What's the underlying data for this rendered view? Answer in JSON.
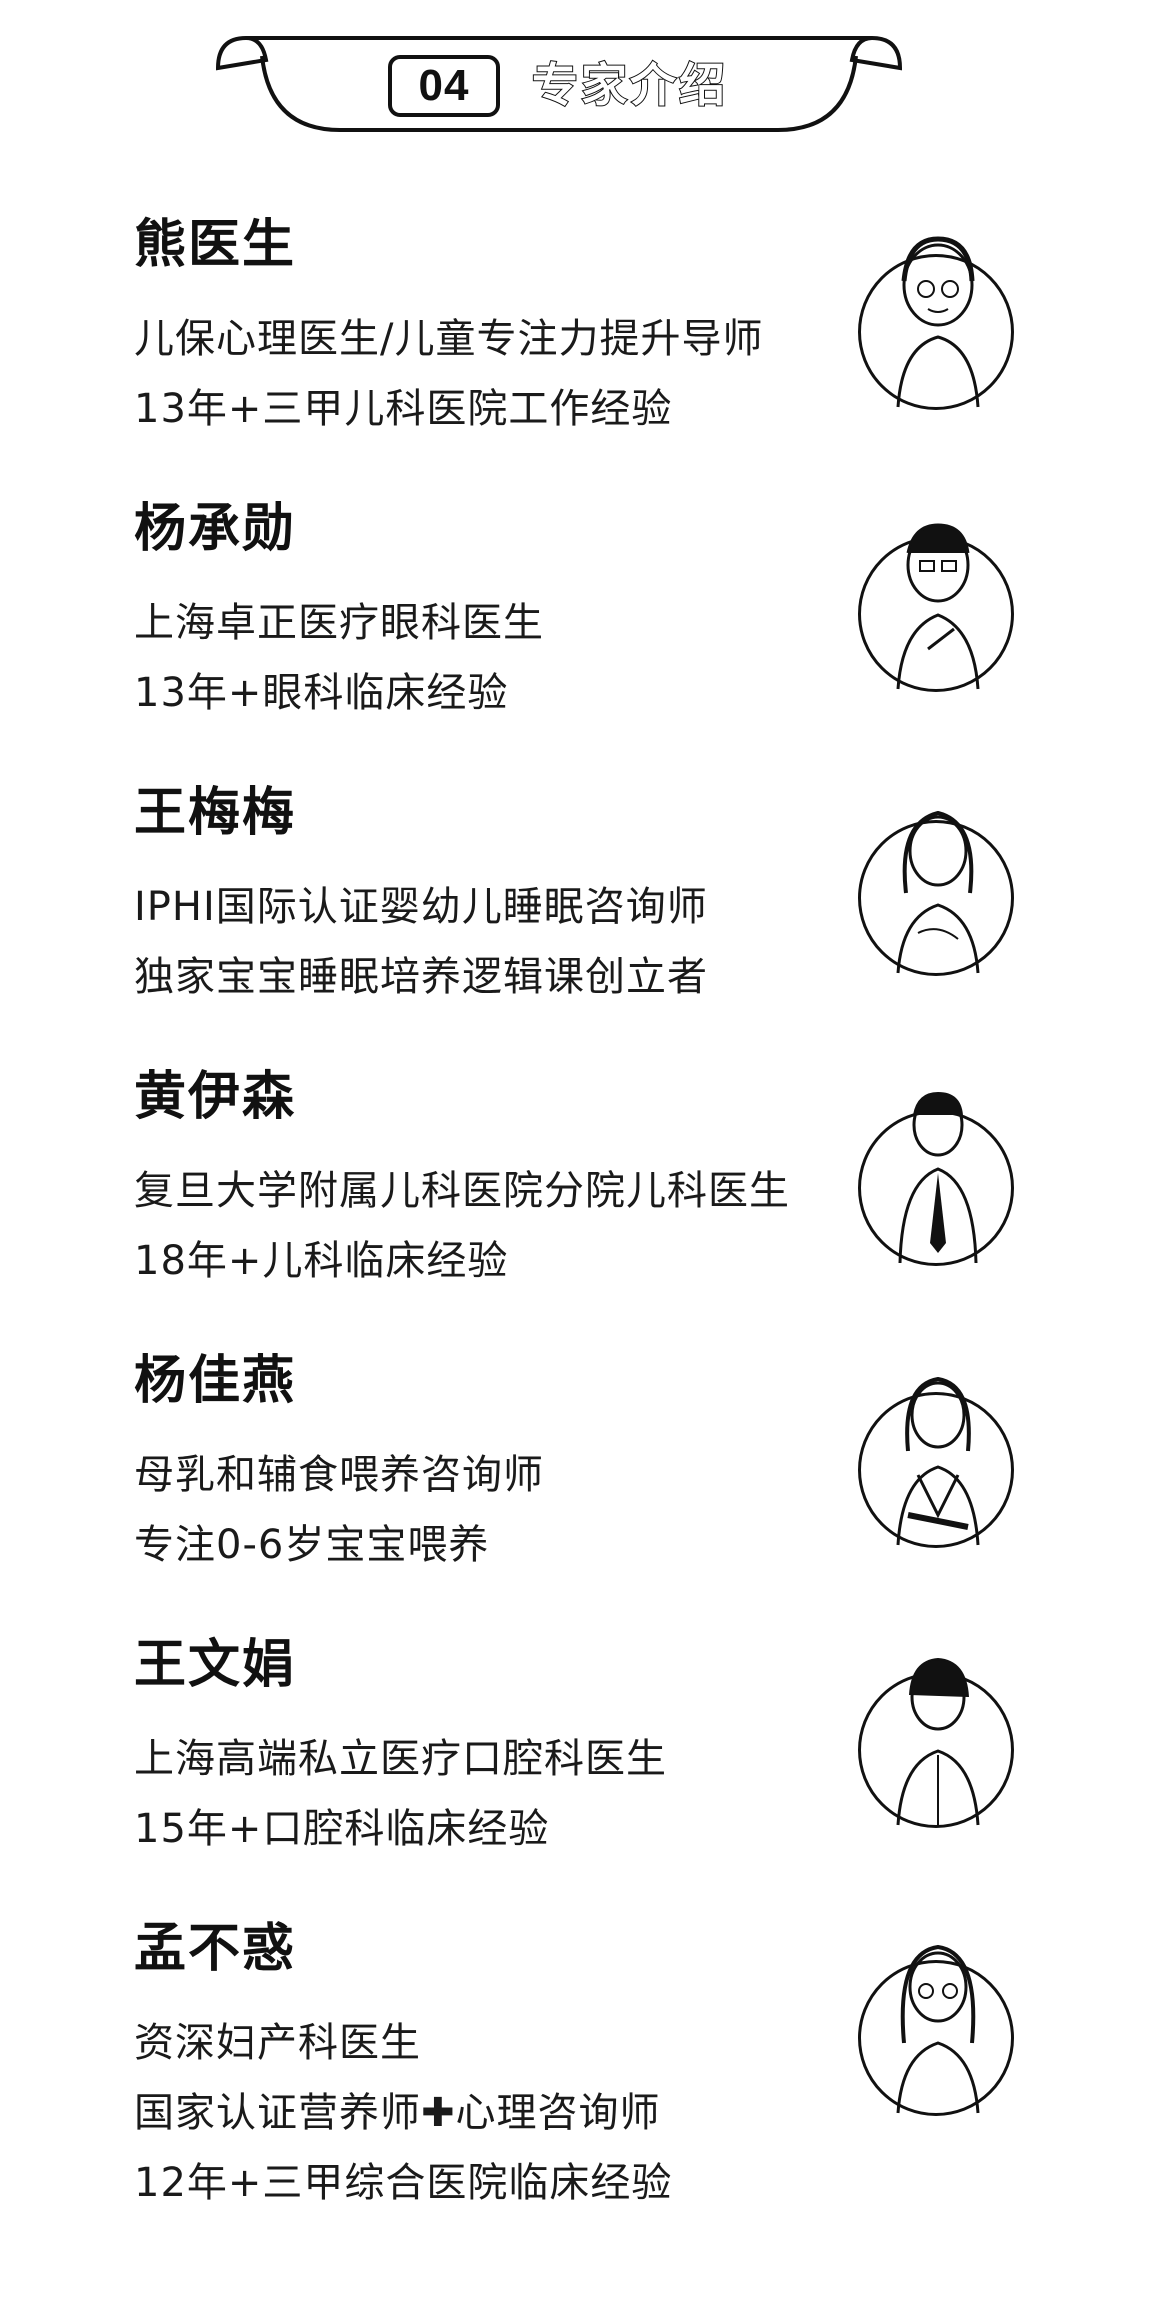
{
  "header": {
    "number": "04",
    "title": "专家介绍"
  },
  "experts": [
    {
      "name": "熊医生",
      "lines": [
        "儿保心理医生/儿童专注力提升导师",
        "13年+三甲儿科医院工作经验"
      ]
    },
    {
      "name": "杨承勋",
      "lines": [
        "上海卓正医疗眼科医生",
        "13年+眼科临床经验"
      ]
    },
    {
      "name": "王梅梅",
      "lines": [
        "IPHI国际认证婴幼儿睡眠咨询师",
        "独家宝宝睡眠培养逻辑课创立者"
      ]
    },
    {
      "name": "黄伊森",
      "lines": [
        "复旦大学附属儿科医院分院儿科医生",
        "18年+儿科临床经验"
      ]
    },
    {
      "name": "杨佳燕",
      "lines": [
        "母乳和辅食喂养咨询师",
        "专注0-6岁宝宝喂养"
      ]
    },
    {
      "name": "王文娟",
      "lines": [
        "上海高端私立医疗口腔科医生",
        "15年+口腔科临床经验"
      ]
    },
    {
      "name": "孟不惑",
      "lines": [
        "资深妇产科医生",
        "国家认证营养师✚心理咨询师",
        "12年+三甲综合医院临床经验"
      ]
    }
  ]
}
